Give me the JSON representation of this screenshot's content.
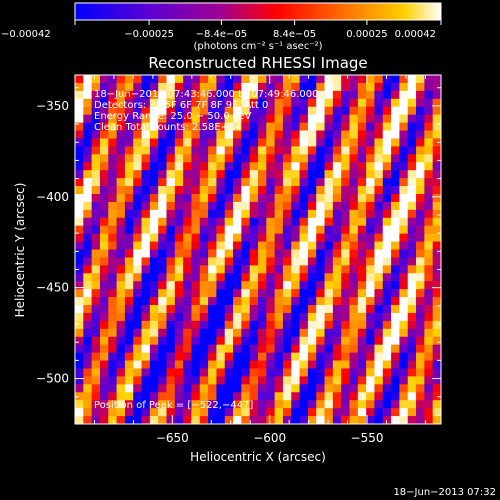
{
  "chart_data": {
    "type": "heatmap",
    "title": "Reconstructed RHESSI Image",
    "xlabel": "Heliocentric X (arcsec)",
    "ylabel": "Heliocentric Y (arcsec)",
    "xlim": [
      -700,
      -512
    ],
    "ylim": [
      -525,
      -333
    ],
    "x_ticks": [
      -650,
      -600,
      -550
    ],
    "x_tick_labels": [
      "−650",
      "−600",
      "−550"
    ],
    "y_ticks": [
      -500,
      -450,
      -400,
      -350
    ],
    "y_tick_labels": [
      "−500",
      "−450",
      "−400",
      "−350"
    ],
    "colorbar": {
      "range": [
        -0.00042,
        0.00042
      ],
      "ticks": [
        -0.00042,
        -0.00025,
        -8.4e-05,
        8.4e-05,
        0.00025,
        0.00042
      ],
      "tick_labels": [
        "−0.00042",
        "−0.00025",
        "−8.4e−05",
        "8.4e−05",
        "0.00025",
        "0.00042"
      ],
      "units": "(photons cm⁻² s⁻¹ asec⁻²)",
      "colors": [
        "#0000ff",
        "#6a00c8",
        "#b20090",
        "#ff0000",
        "#ff7800",
        "#ffd000",
        "#ffffff"
      ]
    },
    "annotations": [
      "18−Jun−2013 07:43:46.000 to 07:49:46.000",
      "Detectors: 3F 5F 6F 7F 8F 9F, Att 0",
      "Energy Range: 25.0 − 50.0 keV",
      "Clean     Total counts: 2.58E+04"
    ],
    "peak_label": "Position of Peak = [−522,−447]",
    "peak_position": [
      -522,
      -447
    ],
    "grid": false
  },
  "footer": {
    "timestamp": "18−Jun−2013 07:32"
  }
}
